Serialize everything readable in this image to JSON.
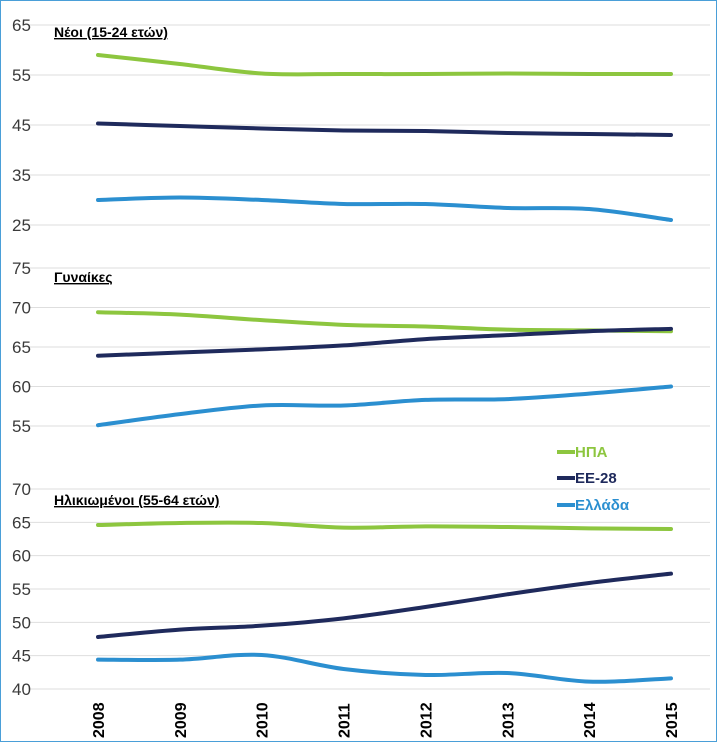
{
  "chart_data": {
    "type": "line",
    "x": [
      "2008",
      "2009",
      "2010",
      "2011",
      "2012",
      "2013",
      "2014",
      "2015"
    ],
    "legend": {
      "placement": "right",
      "entries": [
        {
          "name": "ΗΠΑ",
          "color": "#8dc63f"
        },
        {
          "name": "ΕΕ-28",
          "color": "#1f2a5c"
        },
        {
          "name": "Ελλάδα",
          "color": "#2b8fd0"
        }
      ]
    },
    "grid": true,
    "panels": [
      {
        "title": "Νέοι (15-24 ετών)",
        "yticks": [
          "65",
          "55",
          "45",
          "35",
          "25"
        ],
        "ylim": [
          25,
          65
        ],
        "series": [
          {
            "name": "ΗΠΑ",
            "color": "#8dc63f",
            "values": [
              59.0,
              57.2,
              55.3,
              55.2,
              55.2,
              55.3,
              55.2,
              55.2
            ]
          },
          {
            "name": "ΕΕ-28",
            "color": "#1f2a5c",
            "values": [
              45.3,
              44.8,
              44.3,
              43.9,
              43.8,
              43.4,
              43.2,
              43.0
            ]
          },
          {
            "name": "Ελλάδα",
            "color": "#2b8fd0",
            "values": [
              30.0,
              30.5,
              30.0,
              29.2,
              29.2,
              28.4,
              28.2,
              26.0
            ]
          }
        ]
      },
      {
        "title": "Γυναίκες",
        "yticks": [
          "75",
          "70",
          "65",
          "60",
          "55"
        ],
        "ylim": [
          55,
          75
        ],
        "series": [
          {
            "name": "ΗΠΑ",
            "color": "#8dc63f",
            "values": [
              69.4,
              69.1,
              68.4,
              67.8,
              67.6,
              67.2,
              67.1,
              67.0
            ]
          },
          {
            "name": "ΕΕ-28",
            "color": "#1f2a5c",
            "values": [
              63.9,
              64.3,
              64.7,
              65.2,
              66.0,
              66.5,
              67.0,
              67.3
            ]
          },
          {
            "name": "Ελλάδα",
            "color": "#2b8fd0",
            "values": [
              55.1,
              56.5,
              57.6,
              57.6,
              58.3,
              58.4,
              59.1,
              60.0
            ]
          }
        ]
      },
      {
        "title": "Ηλικιωμένοι (55-64 ετών)",
        "yticks": [
          "70",
          "65",
          "60",
          "55",
          "50",
          "45",
          "40"
        ],
        "ylim": [
          40,
          70
        ],
        "series": [
          {
            "name": "ΗΠΑ",
            "color": "#8dc63f",
            "values": [
              64.6,
              64.9,
              64.9,
              64.2,
              64.4,
              64.3,
              64.1,
              64.0
            ]
          },
          {
            "name": "ΕΕ-28",
            "color": "#1f2a5c",
            "values": [
              47.8,
              48.9,
              49.5,
              50.6,
              52.3,
              54.2,
              55.9,
              57.3
            ]
          },
          {
            "name": "Ελλάδα",
            "color": "#2b8fd0",
            "values": [
              44.4,
              44.4,
              45.1,
              43.0,
              42.1,
              42.4,
              41.1,
              41.6
            ]
          }
        ]
      }
    ]
  }
}
